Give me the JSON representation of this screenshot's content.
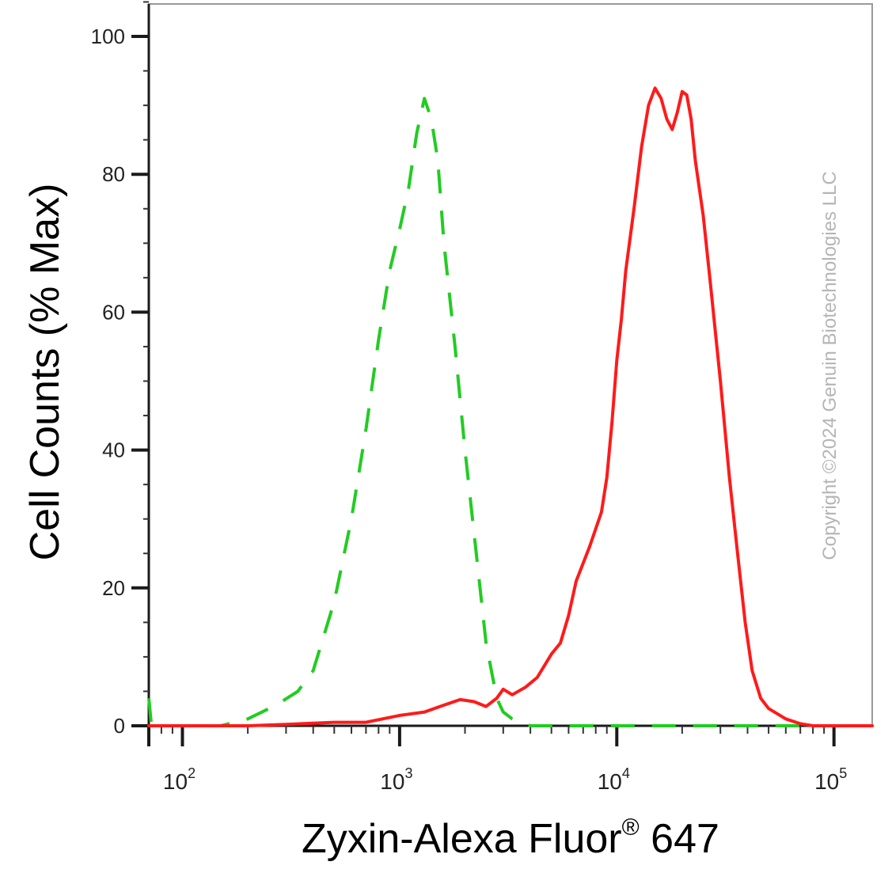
{
  "chart_data": {
    "type": "line",
    "xlabel": "Zyxin-Alexa Fluor",
    "xlabel_sup": "®",
    "xlabel_suffix": " 647",
    "ylabel": "Cell Counts (% Max)",
    "x_scale": "log",
    "xlim": [
      70,
      150000
    ],
    "ylim": [
      0,
      105
    ],
    "grid": false,
    "y_ticks": [
      0,
      20,
      40,
      60,
      80,
      100
    ],
    "x_ticks": [
      {
        "value": 100,
        "base": "10",
        "exp": "2"
      },
      {
        "value": 1000,
        "base": "10",
        "exp": "3"
      },
      {
        "value": 10000,
        "base": "10",
        "exp": "4"
      },
      {
        "value": 100000,
        "base": "10",
        "exp": "5"
      }
    ],
    "series": [
      {
        "color": "#22cc22",
        "style": "dashed",
        "x": [
          70,
          72,
          100,
          150,
          200,
          270,
          340,
          400,
          500,
          600,
          700,
          800,
          900,
          1000,
          1100,
          1200,
          1300,
          1400,
          1500,
          1600,
          1800,
          2000,
          2200,
          2500,
          2800,
          3000,
          3300,
          3700,
          4000,
          5000,
          10000,
          30000,
          100000,
          150000
        ],
        "y": [
          4,
          0,
          0,
          0,
          1,
          3,
          5,
          8,
          18,
          30,
          43,
          56,
          66,
          72,
          78,
          86,
          91,
          88,
          82,
          70,
          55,
          40,
          28,
          12,
          4,
          2,
          1,
          0.5,
          0,
          0,
          0,
          0,
          0,
          0
        ]
      },
      {
        "color": "#ff1a1a",
        "style": "solid",
        "x": [
          70,
          200,
          300,
          500,
          700,
          1000,
          1300,
          1600,
          1900,
          2200,
          2500,
          2800,
          3000,
          3300,
          3800,
          4300,
          5000,
          5500,
          6000,
          6500,
          7500,
          8500,
          9000,
          9500,
          10000,
          10500,
          11000,
          12000,
          13000,
          14000,
          15000,
          16000,
          17000,
          18000,
          19000,
          20000,
          21000,
          22000,
          23000,
          25000,
          27000,
          30000,
          33000,
          36000,
          39000,
          42000,
          46000,
          50000,
          60000,
          70000,
          80000,
          90000,
          100000,
          150000
        ],
        "y": [
          0,
          0,
          0.2,
          0.5,
          0.5,
          1.5,
          2,
          3,
          3.8,
          3.5,
          2.8,
          4,
          5.3,
          4.5,
          5.6,
          7,
          10.4,
          12,
          16,
          21,
          26,
          31,
          36,
          44,
          53,
          59,
          66,
          75,
          84,
          90,
          92.5,
          91,
          88,
          86.5,
          89,
          92,
          91.5,
          88,
          82,
          74,
          64,
          50,
          36,
          25,
          15,
          8,
          4,
          2.5,
          1,
          0.3,
          0,
          0,
          0,
          0
        ]
      }
    ]
  },
  "copyright": "Copyright ©2024 Genuin Biotechnologies LLC"
}
